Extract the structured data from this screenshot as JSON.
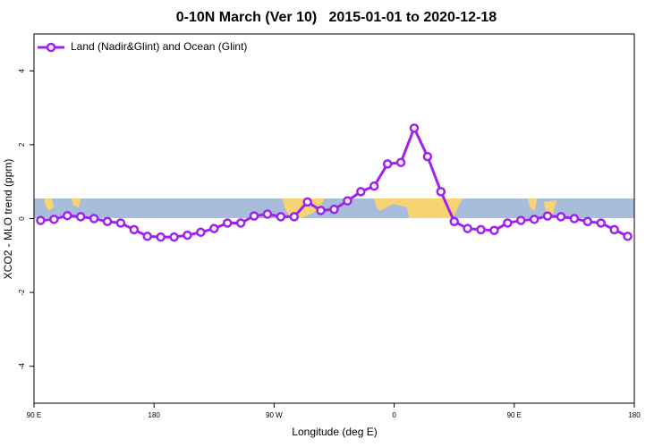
{
  "chart_data": {
    "type": "line",
    "title": "0-10N March (Ver 10)   2015-01-01 to 2020-12-18",
    "x_label": "Longitude (deg E)",
    "y_label": "XCO2 - MLO trend (ppm)",
    "x": [
      95,
      105,
      115,
      125,
      135,
      145,
      155,
      165,
      175,
      185,
      195,
      205,
      215,
      225,
      235,
      245,
      255,
      265,
      275,
      285,
      295,
      305,
      315,
      325,
      335,
      345,
      355,
      365,
      375,
      385,
      395,
      405,
      415,
      425,
      435,
      445,
      455,
      465,
      475,
      485,
      495,
      505,
      515,
      525,
      535
    ],
    "series": [
      {
        "name": "Land (Nadir&Glint) and Ocean (Glint)",
        "color": "#a020f0",
        "values": [
          -0.05,
          -0.02,
          0.08,
          0.05,
          0.0,
          -0.08,
          -0.12,
          -0.3,
          -0.48,
          -0.5,
          -0.5,
          -0.45,
          -0.37,
          -0.27,
          -0.12,
          -0.12,
          0.07,
          0.12,
          0.05,
          0.05,
          0.45,
          0.22,
          0.25,
          0.48,
          0.73,
          0.88,
          1.48,
          1.52,
          2.45,
          1.68,
          0.73,
          -0.08,
          -0.27,
          -0.3,
          -0.32,
          -0.12,
          -0.05,
          -0.02,
          0.07,
          0.05,
          0.0,
          -0.08,
          -0.12,
          -0.3,
          -0.48
        ]
      }
    ],
    "xlim": [
      90,
      540
    ],
    "xticks": [
      {
        "value": 90,
        "label": "90 E"
      },
      180,
      {
        "value": 270,
        "label": "90 W"
      },
      {
        "value": 360,
        "label": "0"
      },
      {
        "value": 450,
        "label": "90 E"
      },
      {
        "value": 540,
        "label": "180"
      }
    ],
    "ylim": [
      -5,
      5
    ],
    "yticks": [
      -4,
      -2,
      0,
      2,
      4
    ],
    "legend": "top-left"
  }
}
